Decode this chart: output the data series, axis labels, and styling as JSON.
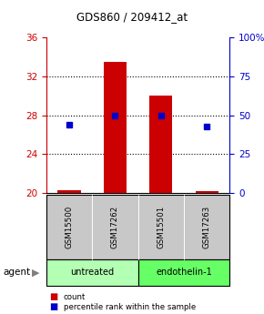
{
  "title": "GDS860 / 209412_at",
  "samples": [
    "GSM15500",
    "GSM17262",
    "GSM15501",
    "GSM17263"
  ],
  "red_values": [
    20.3,
    33.5,
    30.0,
    20.2
  ],
  "blue_percentiles": [
    44,
    50,
    50,
    43
  ],
  "ylim_left": [
    20,
    36
  ],
  "ylim_right": [
    0,
    100
  ],
  "yticks_left": [
    20,
    24,
    28,
    32,
    36
  ],
  "yticks_right": [
    0,
    25,
    50,
    75,
    100
  ],
  "ytick_labels_right": [
    "0",
    "25",
    "50",
    "75",
    "100%"
  ],
  "groups": [
    {
      "label": "untreated",
      "indices": [
        0,
        1
      ],
      "color": "#b3ffb3"
    },
    {
      "label": "endothelin-1",
      "indices": [
        2,
        3
      ],
      "color": "#66ff66"
    }
  ],
  "bar_color": "#cc0000",
  "dot_color": "#0000cc",
  "bar_width": 0.5,
  "left_tick_color": "#cc0000",
  "right_tick_color": "#0000cc",
  "legend_items": [
    {
      "label": "count",
      "color": "#cc0000"
    },
    {
      "label": "percentile rank within the sample",
      "color": "#0000cc"
    }
  ],
  "agent_label": "agent",
  "background_plot": "#ffffff",
  "background_sample": "#c8c8c8",
  "grid_yticks": [
    24,
    28,
    32
  ]
}
